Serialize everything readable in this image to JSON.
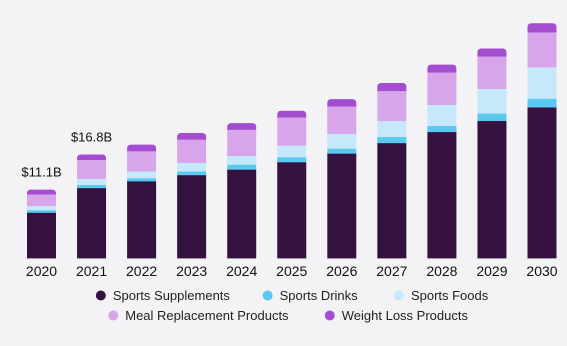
{
  "chart_data": {
    "type": "bar",
    "stacked": true,
    "categories": [
      "2020",
      "2021",
      "2022",
      "2023",
      "2024",
      "2025",
      "2026",
      "2027",
      "2028",
      "2029",
      "2030"
    ],
    "series": [
      {
        "name": "Sports Supplements",
        "color": "#35113f",
        "values": [
          7.4,
          11.4,
          12.5,
          13.5,
          14.4,
          15.6,
          17.0,
          18.7,
          20.5,
          22.3,
          24.5
        ]
      },
      {
        "name": "Sports Drinks",
        "color": "#5bc8ef",
        "values": [
          0.4,
          0.5,
          0.5,
          0.6,
          0.8,
          0.8,
          0.8,
          1.0,
          1.0,
          1.2,
          1.4
        ]
      },
      {
        "name": "Sports Foods",
        "color": "#c5e9fb",
        "values": [
          0.7,
          1.0,
          1.1,
          1.4,
          1.4,
          1.9,
          2.4,
          2.6,
          3.4,
          4.0,
          5.1
        ]
      },
      {
        "name": "Meal Replacement Products",
        "color": "#d8a5eb",
        "values": [
          1.8,
          3.0,
          3.2,
          3.7,
          4.2,
          4.5,
          4.4,
          4.8,
          5.2,
          5.2,
          5.6
        ]
      },
      {
        "name": "Weight Loss Products",
        "color": "#a54dd1",
        "values": [
          0.8,
          0.9,
          1.1,
          1.1,
          1.1,
          1.1,
          1.2,
          1.3,
          1.3,
          1.3,
          1.5
        ]
      }
    ],
    "data_labels": [
      {
        "category": "2020",
        "text": "$11.1B"
      },
      {
        "category": "2021",
        "text": "$16.8B"
      }
    ],
    "ylim": [
      0,
      40
    ],
    "grid": false,
    "legend_position": "bottom"
  }
}
